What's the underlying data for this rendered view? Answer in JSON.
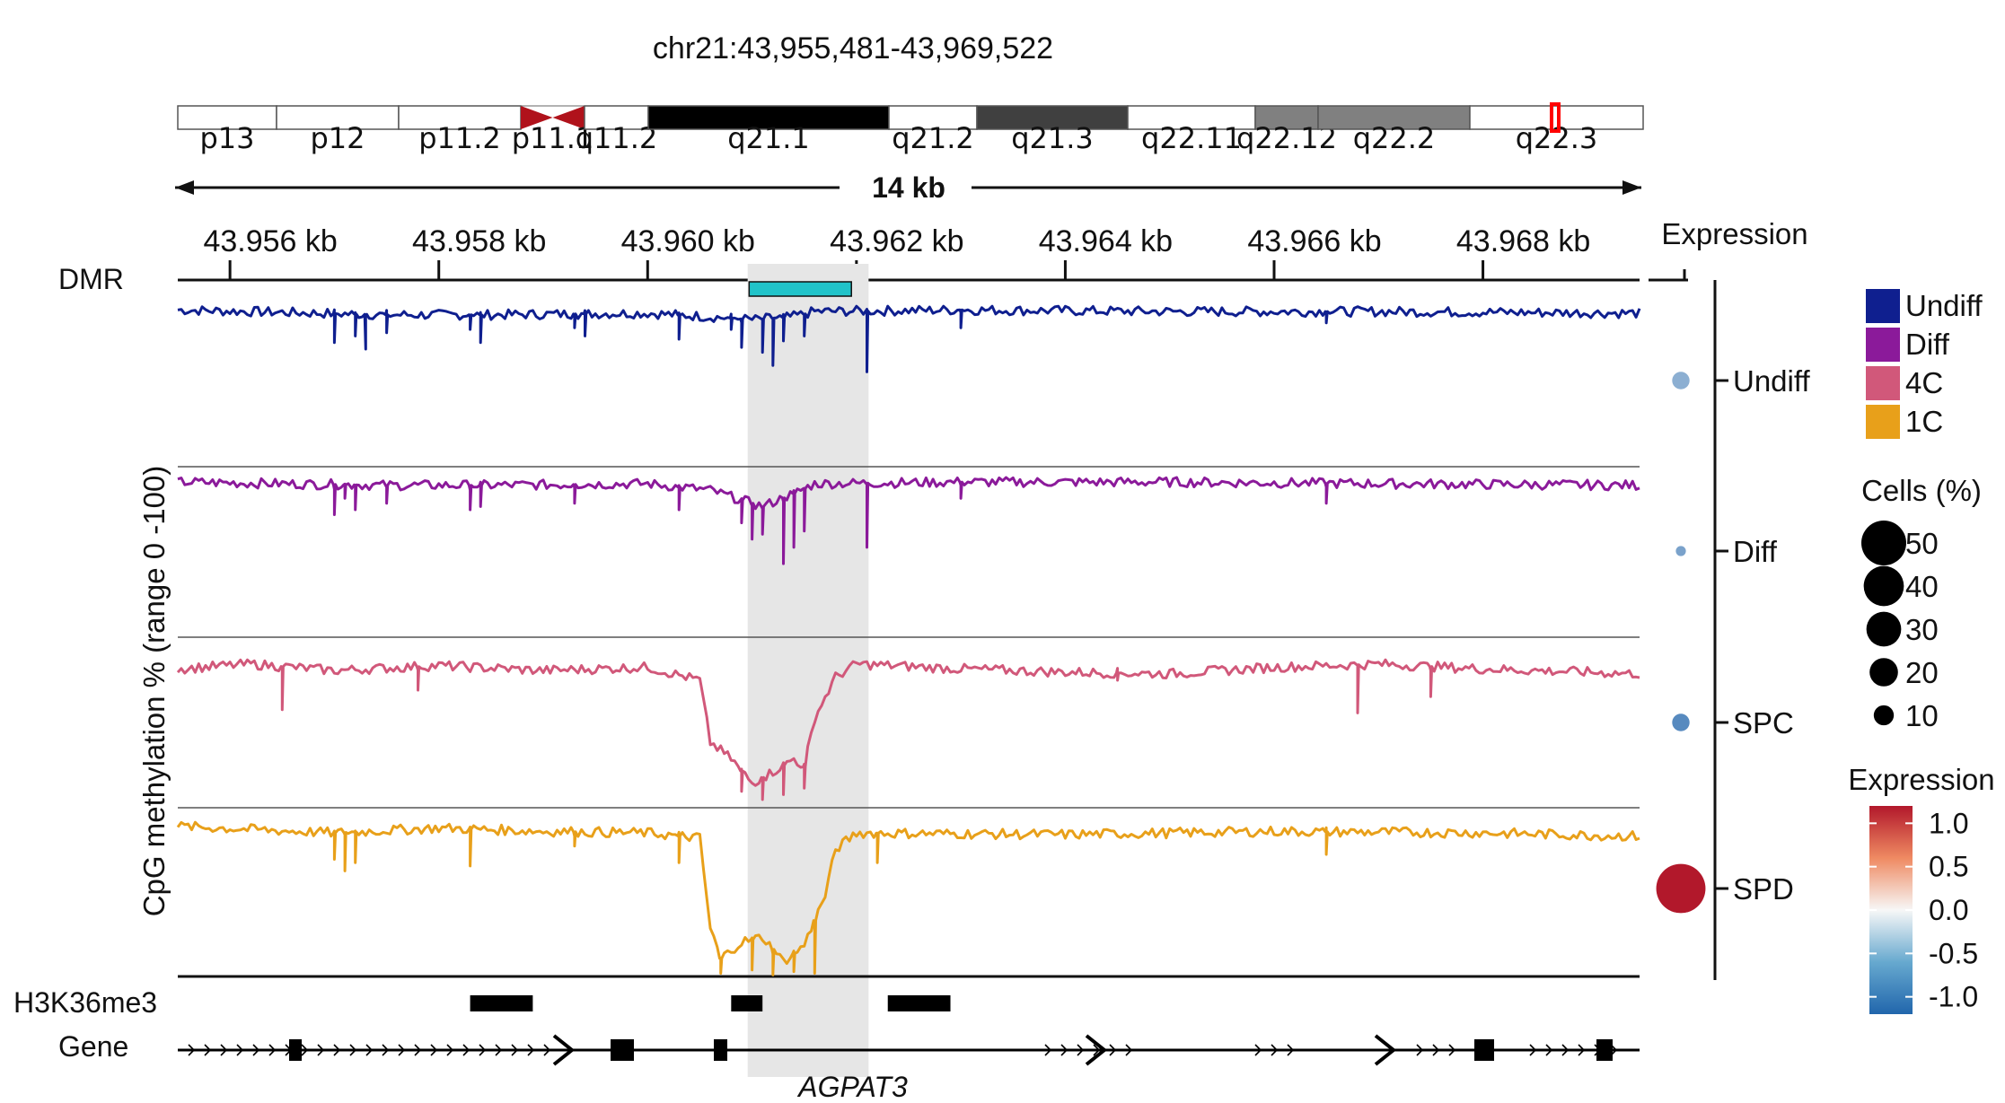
{
  "chart_data": {
    "type": "line",
    "region_title": "chr21:43,955,481-43,969,522",
    "ideogram": {
      "bands": [
        {
          "name": "p13",
          "stain": "gneg"
        },
        {
          "name": "p12",
          "stain": "gneg"
        },
        {
          "name": "p11.2",
          "stain": "gneg"
        },
        {
          "name": "p11.1",
          "stain": "acen"
        },
        {
          "name": "q11.2",
          "stain": "gneg"
        },
        {
          "name": "q21.1",
          "stain": "gpos100"
        },
        {
          "name": "q21.2",
          "stain": "gneg"
        },
        {
          "name": "q21.3",
          "stain": "gpos75"
        },
        {
          "name": "q22.11",
          "stain": "gneg"
        },
        {
          "name": "q22.12",
          "stain": "gpos50"
        },
        {
          "name": "q22.2",
          "stain": "gpos50"
        },
        {
          "name": "q22.3",
          "stain": "gneg"
        }
      ],
      "highlight_band": "q22.3",
      "highlight_color": "#ff0000"
    },
    "scale_label": "14 kb",
    "x_axis": {
      "range_kb": [
        43.9555,
        43.9695
      ],
      "ticks_kb": [
        43.956,
        43.958,
        43.96,
        43.962,
        43.964,
        43.966,
        43.968
      ],
      "tick_labels": [
        "43.956 kb",
        "43.958 kb",
        "43.960 kb",
        "43.962 kb",
        "43.964 kb",
        "43.966 kb",
        "43.968 kb"
      ]
    },
    "ylabel": "CpG methylation % (range 0 -100)",
    "ylim": [
      0,
      100
    ],
    "dmr": {
      "label": "DMR",
      "start_kb": 43.9608,
      "end_kb": 43.9619,
      "color": "#21c3c9"
    },
    "highlight_region": {
      "start_kb": 43.9607,
      "end_kb": 43.9616,
      "color": "#e6e6e6"
    },
    "series": [
      {
        "name": "Undiff",
        "color": "#0f1f8f",
        "baseline": [
          [
            43.9555,
            96
          ],
          [
            43.9575,
            93
          ],
          [
            43.9585,
            93
          ],
          [
            43.96,
            94
          ],
          [
            43.9608,
            91
          ],
          [
            43.961,
            90
          ],
          [
            43.9614,
            92
          ],
          [
            43.9616,
            95
          ],
          [
            43.963,
            96
          ],
          [
            43.965,
            95
          ],
          [
            43.967,
            95
          ],
          [
            43.9695,
            94
          ]
        ],
        "dips": [
          [
            43.957,
            76
          ],
          [
            43.9572,
            80
          ],
          [
            43.9573,
            72
          ],
          [
            43.9575,
            82
          ],
          [
            43.9583,
            84
          ],
          [
            43.9584,
            76
          ],
          [
            43.9593,
            85
          ],
          [
            43.9594,
            80
          ],
          [
            43.9603,
            78
          ],
          [
            43.9608,
            84
          ],
          [
            43.9609,
            73
          ],
          [
            43.9611,
            70
          ],
          [
            43.9612,
            62
          ],
          [
            43.9613,
            77
          ],
          [
            43.9615,
            80
          ],
          [
            43.9621,
            58
          ],
          [
            43.963,
            85
          ],
          [
            43.9665,
            88
          ]
        ]
      },
      {
        "name": "Diff",
        "color": "#8b1a9a",
        "baseline": [
          [
            43.9555,
            95
          ],
          [
            43.9575,
            93
          ],
          [
            43.9585,
            93
          ],
          [
            43.96,
            94
          ],
          [
            43.9606,
            90
          ],
          [
            43.9608,
            86
          ],
          [
            43.9611,
            80
          ],
          [
            43.9614,
            88
          ],
          [
            43.9616,
            94
          ],
          [
            43.963,
            95
          ],
          [
            43.965,
            95
          ],
          [
            43.967,
            94
          ],
          [
            43.9695,
            93
          ]
        ],
        "dips": [
          [
            43.957,
            75
          ],
          [
            43.9571,
            85
          ],
          [
            43.9572,
            78
          ],
          [
            43.9575,
            82
          ],
          [
            43.9583,
            78
          ],
          [
            43.9584,
            80
          ],
          [
            43.9593,
            82
          ],
          [
            43.9603,
            78
          ],
          [
            43.9609,
            70
          ],
          [
            43.961,
            60
          ],
          [
            43.9611,
            63
          ],
          [
            43.9613,
            45
          ],
          [
            43.9614,
            55
          ],
          [
            43.9615,
            65
          ],
          [
            43.9621,
            55
          ],
          [
            43.963,
            85
          ],
          [
            43.9665,
            82
          ]
        ]
      },
      {
        "name": "4C",
        "color": "#d1587a",
        "baseline": [
          [
            43.9555,
            85
          ],
          [
            43.9562,
            88
          ],
          [
            43.957,
            84
          ],
          [
            43.958,
            87
          ],
          [
            43.959,
            84
          ],
          [
            43.96,
            86
          ],
          [
            43.9605,
            78
          ],
          [
            43.9606,
            40
          ],
          [
            43.9608,
            30
          ],
          [
            43.961,
            15
          ],
          [
            43.9612,
            22
          ],
          [
            43.9614,
            30
          ],
          [
            43.9615,
            25
          ],
          [
            43.9616,
            55
          ],
          [
            43.9618,
            80
          ],
          [
            43.962,
            88
          ],
          [
            43.963,
            85
          ],
          [
            43.964,
            83
          ],
          [
            43.965,
            82
          ],
          [
            43.966,
            86
          ],
          [
            43.967,
            88
          ],
          [
            43.968,
            85
          ],
          [
            43.9695,
            82
          ]
        ],
        "dips": [
          [
            43.9565,
            60
          ],
          [
            43.9578,
            72
          ],
          [
            43.9609,
            10
          ],
          [
            43.9611,
            5
          ],
          [
            43.9613,
            8
          ],
          [
            43.9615,
            12
          ],
          [
            43.9645,
            78
          ],
          [
            43.9668,
            58
          ],
          [
            43.9675,
            68
          ]
        ]
      },
      {
        "name": "1C",
        "color": "#e8a01a",
        "baseline": [
          [
            43.9555,
            92
          ],
          [
            43.957,
            88
          ],
          [
            43.958,
            91
          ],
          [
            43.959,
            89
          ],
          [
            43.96,
            88
          ],
          [
            43.9605,
            85
          ],
          [
            43.9606,
            30
          ],
          [
            43.9607,
            12
          ],
          [
            43.9609,
            22
          ],
          [
            43.9611,
            25
          ],
          [
            43.9613,
            10
          ],
          [
            43.9615,
            20
          ],
          [
            43.9617,
            50
          ],
          [
            43.9618,
            78
          ],
          [
            43.962,
            88
          ],
          [
            43.964,
            87
          ],
          [
            43.966,
            89
          ],
          [
            43.968,
            88
          ],
          [
            43.9695,
            86
          ]
        ],
        "dips": [
          [
            43.957,
            72
          ],
          [
            43.9571,
            65
          ],
          [
            43.9572,
            70
          ],
          [
            43.9583,
            68
          ],
          [
            43.9593,
            80
          ],
          [
            43.9603,
            70
          ],
          [
            43.9607,
            3
          ],
          [
            43.961,
            5
          ],
          [
            43.9612,
            2
          ],
          [
            43.9614,
            4
          ],
          [
            43.9616,
            3
          ],
          [
            43.9622,
            70
          ],
          [
            43.9665,
            75
          ]
        ]
      }
    ],
    "h3k36me3": {
      "label": "H3K36me3",
      "blocks_kb": [
        [
          43.9583,
          43.9589
        ],
        [
          43.9608,
          43.9611
        ],
        [
          43.9623,
          43.9629
        ]
      ]
    },
    "gene": {
      "label": "Gene",
      "name": "AGPAT3",
      "exons_kb": [
        [
          43.9566,
          43.9567
        ],
        [
          43.9597,
          43.9599
        ],
        [
          43.9605,
          43.9606
        ],
        [
          43.9674,
          43.9676
        ],
        [
          43.9687,
          43.9689
        ]
      ]
    },
    "expression": {
      "title": "Expression",
      "groups": [
        "Undiff",
        "Diff",
        "SPC",
        "SPD"
      ],
      "cells_pct": [
        6,
        2,
        6,
        48
      ],
      "expression": [
        -0.6,
        -0.7,
        -0.9,
        1.2
      ]
    },
    "legend": {
      "series_title": "",
      "size_title": "Cells (%)",
      "size_values": [
        50,
        40,
        30,
        20,
        10
      ],
      "color_title": "Expression",
      "color_ticks": [
        1.0,
        0.5,
        0.0,
        -0.5,
        -1.0
      ],
      "color_tick_labels": [
        "1.0",
        "0.5",
        "0.0",
        "-0.5",
        "-1.0"
      ],
      "color_low": "#2166ac",
      "color_mid": "#f7f7f7",
      "color_high": "#b2182b"
    }
  }
}
